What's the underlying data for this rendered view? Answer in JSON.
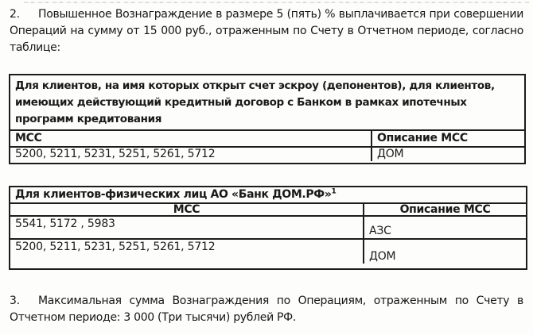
{
  "colors": {
    "background": "#fdfdfb",
    "text": "#1a1a1a",
    "table_border": "#1c1c1c"
  },
  "paragraphs": [
    {
      "number": "2.",
      "lines": [
        "Повышенное Вознаграждение в размере 5 (пять) % выплачивается при совершении",
        "Операций на сумму от 15 000 руб., отраженным по Счету в Отчетном периоде, согласно",
        "таблице:"
      ]
    },
    {
      "number": "3.",
      "lines": [
        "Максимальная сумма Вознаграждения по Операциям, отраженным по Счету в",
        "Отчетном периоде: 3 000 (Три тысячи) рублей РФ."
      ]
    }
  ],
  "table1": {
    "header_lines": [
      "Для клиентов, на имя которых открыт счет эскроу (депонентов), для клиентов,",
      "имеющих действующий кредитный договор с Банком в рамках ипотечных",
      "программ кредитования"
    ],
    "columns": [
      "МСС",
      "Описание МСС"
    ],
    "rows": [
      {
        "mcc": "5200, 5211, 5231, 5251, 5261, 5712",
        "description": "ДОМ"
      }
    ]
  },
  "table2": {
    "title": "Для клиентов-физических лиц АО «Банк ДОМ.РФ»",
    "footnote_mark": "1",
    "columns": [
      "МСС",
      "Описание МСС"
    ],
    "rows": [
      {
        "mcc": "5541, 5172 , 5983",
        "description": "АЗС"
      },
      {
        "mcc": "5200, 5211, 5231, 5251, 5261, 5712",
        "description": "ДОМ"
      }
    ]
  }
}
